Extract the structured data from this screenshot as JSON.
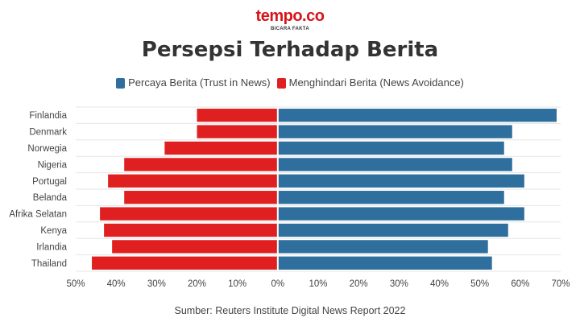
{
  "brand": {
    "logo": "tempo.co",
    "tagline": "BICARA FAKTA"
  },
  "colors": {
    "trust": "#2e6f9e",
    "avoidance": "#e02020",
    "grid": "#e6e6e6",
    "text": "#444444"
  },
  "chart_data": {
    "type": "bar",
    "orientation": "horizontal-diverging",
    "title": "Persepsi Terhadap Berita",
    "categories": [
      "Finlandia",
      "Denmark",
      "Norwegia",
      "Nigeria",
      "Portugal",
      "Belanda",
      "Afrika Selatan",
      "Kenya",
      "Irlandia",
      "Thailand"
    ],
    "series": [
      {
        "name": "Percaya Berita (Trust in News)",
        "direction": "right",
        "values": [
          69,
          58,
          56,
          58,
          61,
          56,
          61,
          57,
          52,
          53
        ]
      },
      {
        "name": "Menghindari Berita (News Avoidance)",
        "direction": "left",
        "values": [
          20,
          20,
          28,
          38,
          42,
          38,
          44,
          43,
          41,
          46
        ]
      }
    ],
    "xlim": [
      -50,
      70
    ],
    "xticks": [
      "50%",
      "40%",
      "30%",
      "20%",
      "10%",
      "0%",
      "10%",
      "20%",
      "30%",
      "40%",
      "50%",
      "60%",
      "70%"
    ],
    "grid": true,
    "legend": "top-center",
    "source": "Sumber: Reuters Institute Digital News Report 2022"
  }
}
